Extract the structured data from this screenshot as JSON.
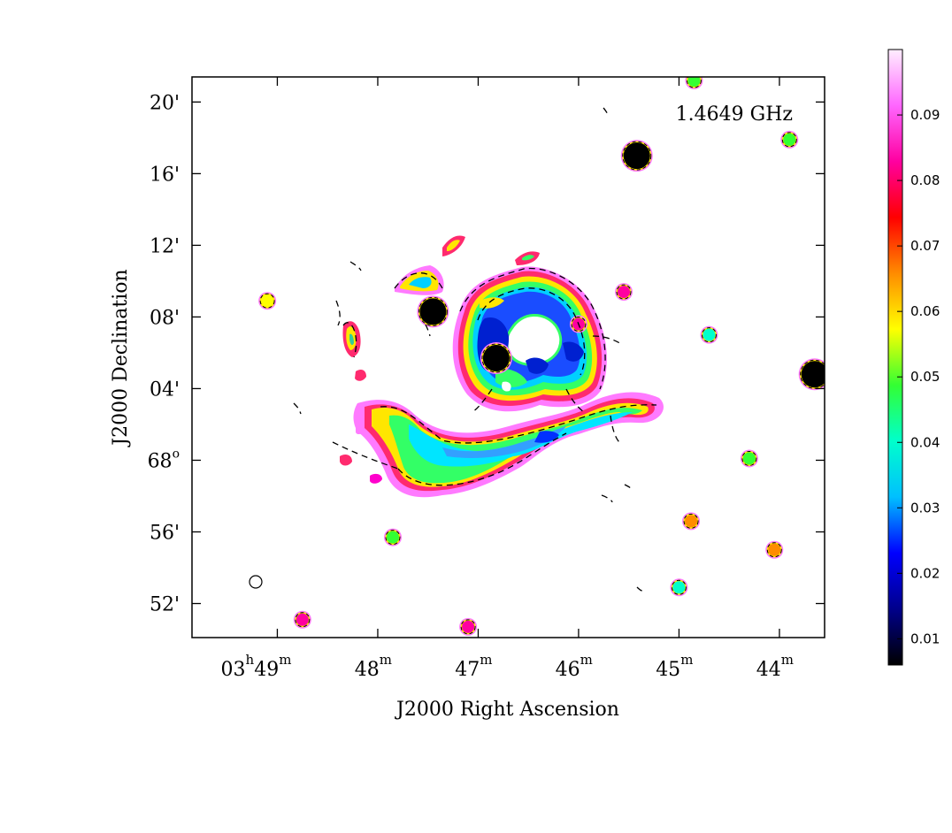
{
  "figure": {
    "frequency_label": "1.4649 GHz",
    "x_axis_label": "J2000 Right Ascension",
    "y_axis_label": "J2000 Declination"
  },
  "chart_data": {
    "type": "heatmap",
    "title": "1.4649 GHz",
    "xlabel": "J2000 Right Ascension",
    "ylabel": "J2000 Declination",
    "x_ticks": [
      {
        "h": "03",
        "m": "49",
        "hours": 3.81667
      },
      {
        "m": "48",
        "hours": 3.8
      },
      {
        "m": "47",
        "hours": 3.78333
      },
      {
        "m": "46",
        "hours": 3.76667
      },
      {
        "m": "45",
        "hours": 3.75
      },
      {
        "m": "44",
        "hours": 3.73333
      }
    ],
    "y_ticks": [
      {
        "label": "52'",
        "arcmin": -8
      },
      {
        "label": "56'",
        "arcmin": -4
      },
      {
        "label": "68",
        "degree": true,
        "arcmin": 0
      },
      {
        "label": "04'",
        "arcmin": 4
      },
      {
        "label": "08'",
        "arcmin": 8
      },
      {
        "label": "12'",
        "arcmin": 12
      },
      {
        "label": "16'",
        "arcmin": 16
      },
      {
        "label": "20'",
        "arcmin": 20
      }
    ],
    "x_range_minutes": [
      49.85,
      43.55
    ],
    "y_range_arcmin": [
      -9.9,
      21.4
    ],
    "colorbar": {
      "ticks": [
        "0.01",
        "0.02",
        "0.03",
        "0.04",
        "0.05",
        "0.06",
        "0.07",
        "0.08",
        "0.09"
      ],
      "tick_values": [
        0.01,
        0.02,
        0.03,
        0.04,
        0.05,
        0.06,
        0.07,
        0.08,
        0.09
      ],
      "range": [
        0.006,
        0.1
      ],
      "colormap": [
        "#000000",
        "#00008b",
        "#0000ff",
        "#00bfff",
        "#00ffcc",
        "#33ff33",
        "#ffff00",
        "#ff8c00",
        "#ff0000",
        "#ff00a0",
        "#ff66ff",
        "#ffeeff"
      ]
    },
    "compact_sources": [
      {
        "ra_min": 45.42,
        "dec_arcmin": 17.0,
        "value": 0.008
      },
      {
        "ra_min": 43.65,
        "dec_arcmin": 4.8,
        "value": 0.01
      },
      {
        "ra_min": 47.45,
        "dec_arcmin": 8.3,
        "value": 0.008
      },
      {
        "ra_min": 46.82,
        "dec_arcmin": 5.7,
        "value": 0.007
      },
      {
        "ra_min": 43.9,
        "dec_arcmin": 17.9,
        "value": 0.05
      },
      {
        "ra_min": 44.85,
        "dec_arcmin": 21.2,
        "value": 0.05
      },
      {
        "ra_min": 49.1,
        "dec_arcmin": 8.9,
        "value": 0.06
      },
      {
        "ra_min": 44.7,
        "dec_arcmin": 7.0,
        "value": 0.04
      },
      {
        "ra_min": 44.3,
        "dec_arcmin": 0.1,
        "value": 0.045
      },
      {
        "ra_min": 47.85,
        "dec_arcmin": -4.3,
        "value": 0.045
      },
      {
        "ra_min": 44.88,
        "dec_arcmin": -3.4,
        "value": 0.07
      },
      {
        "ra_min": 44.05,
        "dec_arcmin": -5.0,
        "value": 0.07
      },
      {
        "ra_min": 45.0,
        "dec_arcmin": -7.1,
        "value": 0.04
      },
      {
        "ra_min": 48.75,
        "dec_arcmin": -8.9,
        "value": 0.08
      },
      {
        "ra_min": 47.1,
        "dec_arcmin": -9.3,
        "value": 0.08
      },
      {
        "ra_min": 45.55,
        "dec_arcmin": 9.4,
        "value": 0.085
      },
      {
        "ra_min": 46.0,
        "dec_arcmin": 7.6,
        "value": 0.085
      }
    ]
  }
}
